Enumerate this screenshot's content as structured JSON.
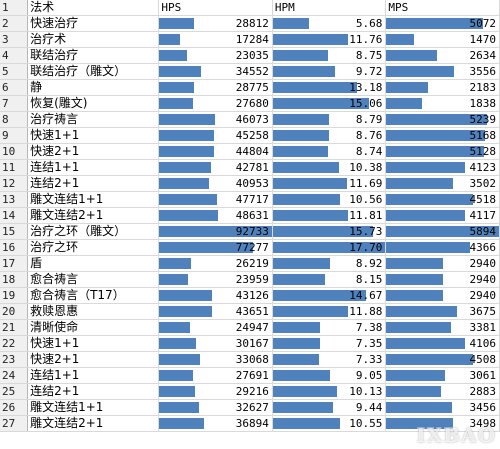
{
  "columns": {
    "row1_label": "1",
    "spell": "法术",
    "hps": "HPS",
    "hpm": "HPM",
    "mps": "MPS"
  },
  "scale": {
    "hps_max": 92733,
    "hpm_max": 17.7,
    "mps_max": 5894
  },
  "colors": {
    "bar": "#4f81bd",
    "gridline": "#d9d9d9",
    "row_header_bg": "#f0f0f0"
  },
  "rows": [
    {
      "row": "2",
      "spell": "快速治疗",
      "hps": 28812,
      "hpm": "5.68",
      "mps": 5072
    },
    {
      "row": "3",
      "spell": "治疗术",
      "hps": 17284,
      "hpm": "11.76",
      "mps": 1470
    },
    {
      "row": "4",
      "spell": "联结治疗",
      "hps": 23035,
      "hpm": "8.75",
      "mps": 2634
    },
    {
      "row": "5",
      "spell": "联结治疗（雕文）",
      "hps": 34552,
      "hpm": "9.72",
      "mps": 3556
    },
    {
      "row": "6",
      "spell": "静",
      "hps": 28775,
      "hpm": "13.18",
      "mps": 2183
    },
    {
      "row": "7",
      "spell": "恢复(雕文)",
      "hps": 27680,
      "hpm": "15.06",
      "mps": 1838
    },
    {
      "row": "8",
      "spell": "治疗祷言",
      "hps": 46073,
      "hpm": "8.79",
      "mps": 5239
    },
    {
      "row": "9",
      "spell": "快速1+1",
      "hps": 45258,
      "hpm": "8.76",
      "mps": 5168
    },
    {
      "row": "10",
      "spell": "快速2+1",
      "hps": 44804,
      "hpm": "8.74",
      "mps": 5128
    },
    {
      "row": "11",
      "spell": "连结1+1",
      "hps": 42781,
      "hpm": "10.38",
      "mps": 4123
    },
    {
      "row": "12",
      "spell": "连结2+1",
      "hps": 40953,
      "hpm": "11.69",
      "mps": 3502
    },
    {
      "row": "13",
      "spell": "雕文连结1+1",
      "hps": 47717,
      "hpm": "10.56",
      "mps": 4518
    },
    {
      "row": "14",
      "spell": "雕文连结2+1",
      "hps": 48631,
      "hpm": "11.81",
      "mps": 4117
    },
    {
      "row": "15",
      "spell": "治疗之环（雕文）",
      "hps": 92733,
      "hpm": "15.73",
      "mps": 5894
    },
    {
      "row": "16",
      "spell": "治疗之环",
      "hps": 77277,
      "hpm": "17.70",
      "mps": 4366
    },
    {
      "row": "17",
      "spell": "盾",
      "hps": 26219,
      "hpm": "8.92",
      "mps": 2940
    },
    {
      "row": "18",
      "spell": "愈合祷言",
      "hps": 23959,
      "hpm": "8.15",
      "mps": 2940
    },
    {
      "row": "19",
      "spell": "愈合祷言（T17）",
      "hps": 43126,
      "hpm": "14.67",
      "mps": 2940
    },
    {
      "row": "20",
      "spell": "救赎恩惠",
      "hps": 43651,
      "hpm": "11.88",
      "mps": 3675
    },
    {
      "row": "21",
      "spell": "清晰使命",
      "hps": 24947,
      "hpm": "7.38",
      "mps": 3381
    },
    {
      "row": "22",
      "spell": "快速1+1",
      "hps": 30167,
      "hpm": "7.35",
      "mps": 4106
    },
    {
      "row": "23",
      "spell": "快速2+1",
      "hps": 33068,
      "hpm": "7.33",
      "mps": 4508
    },
    {
      "row": "24",
      "spell": "连结1+1",
      "hps": 27691,
      "hpm": "9.05",
      "mps": 3061
    },
    {
      "row": "25",
      "spell": "连结2+1",
      "hps": 29216,
      "hpm": "10.13",
      "mps": 2883
    },
    {
      "row": "26",
      "spell": "雕文连结1+1",
      "hps": 32627,
      "hpm": "9.44",
      "mps": 3456
    },
    {
      "row": "27",
      "spell": "雕文连结2+1",
      "hps": 36894,
      "hpm": "10.55",
      "mps": 3498
    }
  ],
  "watermark": "IXBAO"
}
